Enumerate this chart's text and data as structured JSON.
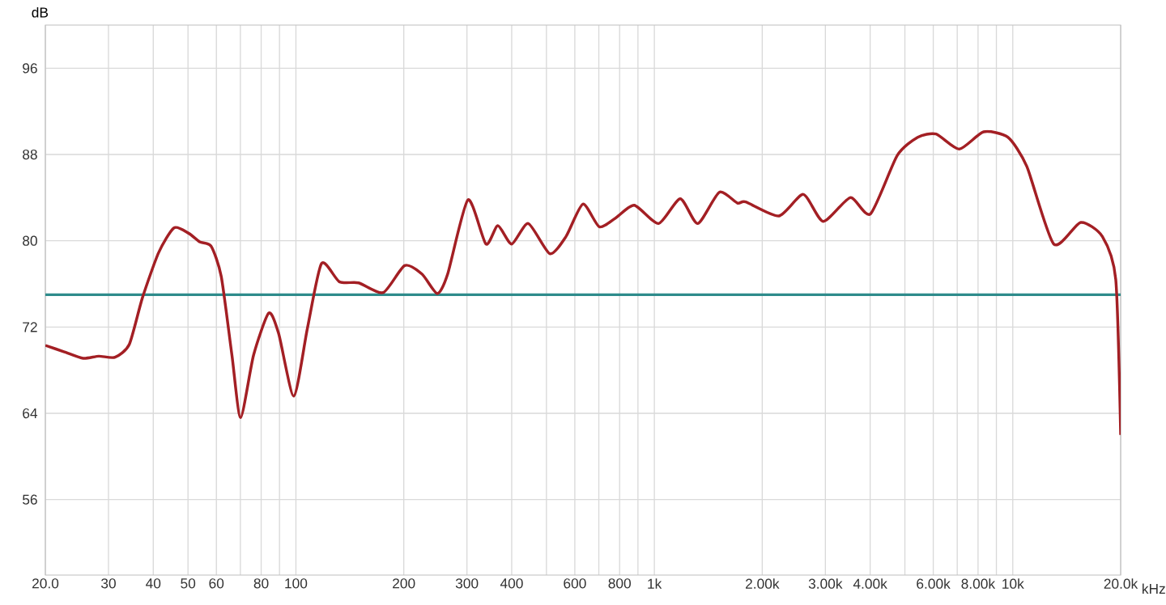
{
  "chart_data": {
    "type": "line",
    "ylabel": "dB",
    "log": "x",
    "grid": true,
    "marker": "none",
    "xlim": [
      20,
      20000
    ],
    "ylim": [
      49,
      100
    ],
    "xticks": [
      {
        "value": 20,
        "label": "20.0"
      },
      30,
      40,
      50,
      60,
      {
        "value": 70,
        "label": null
      },
      80,
      {
        "value": 90,
        "label": null
      },
      100,
      200,
      300,
      400,
      {
        "value": 500,
        "label": null
      },
      600,
      {
        "value": 700,
        "label": null
      },
      800,
      {
        "value": 900,
        "label": null
      },
      {
        "value": 1000,
        "label": "1k"
      },
      {
        "value": 2000,
        "label": "2.00k"
      },
      {
        "value": 3000,
        "label": "3.00k"
      },
      {
        "value": 4000,
        "label": "4.00k"
      },
      {
        "value": 5000,
        "label": null
      },
      {
        "value": 6000,
        "label": "6.00k"
      },
      {
        "value": 7000,
        "label": null
      },
      {
        "value": 8000,
        "label": "8.00k"
      },
      {
        "value": 9000,
        "label": null
      },
      {
        "value": 10000,
        "label": "10k"
      },
      {
        "value": 20000,
        "label": "20.0k"
      }
    ],
    "xlabel": "kHz",
    "yticks": [
      56,
      64,
      72,
      80,
      88,
      96
    ],
    "ref_lines": [
      {
        "axis": "y",
        "value": 75,
        "color": "#2e8b8b"
      }
    ],
    "series": [
      {
        "color": "#a31f24",
        "x": [
          20,
          22.6,
          25.5,
          28.2,
          31.3,
          34.3,
          37.3,
          41.4,
          45.7,
          50.2,
          53.9,
          58,
          61.9,
          66.3,
          70.1,
          76.2,
          84,
          89.5,
          98.7,
          107.7,
          117.9,
          132.2,
          149.7,
          175.3,
          201,
          225,
          248,
          265,
          302,
          339,
          366,
          400,
          445,
          511,
          567,
          632,
          702,
          779,
          879,
          1028,
          1181,
          1322,
          1518,
          1705,
          1799,
          2226,
          2604,
          2960,
          3521,
          4010,
          4758,
          5430,
          6107,
          7090,
          8290,
          9690,
          10940,
          13010,
          15470,
          17780,
          19380,
          20000
        ],
        "values": [
          70.3,
          69.7,
          69.1,
          69.3,
          69.2,
          70.4,
          74.7,
          78.9,
          81.2,
          80.7,
          79.9,
          79.5,
          76.7,
          69.4,
          63.6,
          69.4,
          73.3,
          71.4,
          65.6,
          71.9,
          77.9,
          76.2,
          76.1,
          75.2,
          77.7,
          76.9,
          75.1,
          76.9,
          83.8,
          79.7,
          81.4,
          79.7,
          81.6,
          78.8,
          80.4,
          83.4,
          81.3,
          82.1,
          83.3,
          81.6,
          83.9,
          81.6,
          84.5,
          83.5,
          83.6,
          82.3,
          84.3,
          81.8,
          84.0,
          82.5,
          87.9,
          89.6,
          89.9,
          88.5,
          90.1,
          89.6,
          86.9,
          79.7,
          81.7,
          80.4,
          76.4,
          62.0
        ]
      }
    ]
  }
}
